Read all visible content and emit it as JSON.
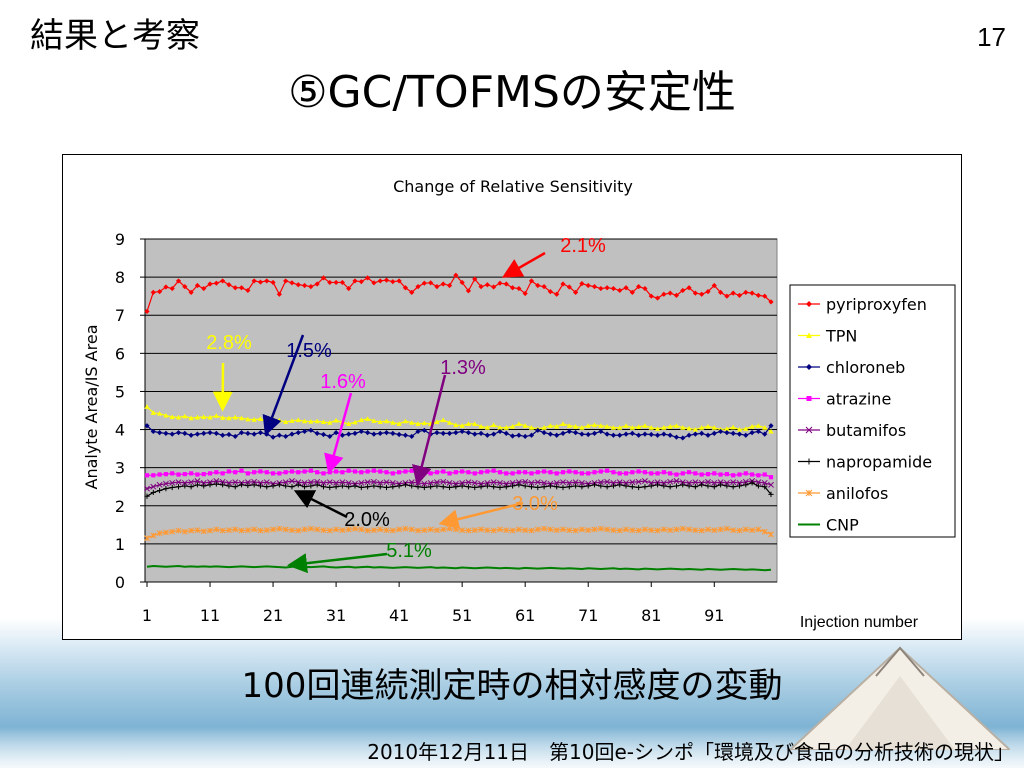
{
  "slide": {
    "section_title": "結果と考察",
    "page_number": "17",
    "title": "⑤GC/TOFMSの安定性",
    "caption": "100回連続測定時の相対感度の変動",
    "footer": "2010年12月11日　第10回e-シンポ「環境及び食品の分析技術の現状」"
  },
  "chart_data": {
    "type": "line",
    "title": "Change of Relative Sensitivity",
    "xlabel": "Injection number",
    "ylabel": "Analyte Area/IS Area",
    "xlim": [
      1,
      100
    ],
    "ylim": [
      0,
      9
    ],
    "y_ticks": [
      "0",
      "1",
      "2",
      "3",
      "4",
      "5",
      "6",
      "7",
      "8",
      "9"
    ],
    "x_ticks": [
      {
        "label": "1",
        "x": 1
      },
      {
        "label": "11",
        "x": 11
      },
      {
        "label": "21",
        "x": 21
      },
      {
        "label": "31",
        "x": 31
      },
      {
        "label": "41",
        "x": 41
      },
      {
        "label": "51",
        "x": 51
      },
      {
        "label": "61",
        "x": 61
      },
      {
        "label": "71",
        "x": 71
      },
      {
        "label": "81",
        "x": 81
      },
      {
        "label": "91",
        "x": 91
      }
    ],
    "plot_background": "#c0c0c0",
    "grid": true,
    "legend_position": "right",
    "series": [
      {
        "name": "pyriproxyfen",
        "color": "#ff0000",
        "marker": "diamond",
        "values": [
          7.1,
          7.6,
          7.62,
          7.74,
          7.7,
          7.9,
          7.75,
          7.6,
          7.78,
          7.7,
          7.82,
          7.84,
          7.9,
          7.8,
          7.72,
          7.72,
          7.65,
          7.9,
          7.87,
          7.9,
          7.86,
          7.55,
          7.9,
          7.85,
          7.8,
          7.78,
          7.75,
          7.82,
          7.98,
          7.86,
          7.86,
          7.86,
          7.7,
          7.9,
          7.88,
          7.98,
          7.85,
          7.9,
          7.92,
          7.88,
          7.9,
          7.72,
          7.6,
          7.75,
          7.84,
          7.85,
          7.75,
          7.82,
          7.78,
          8.05,
          7.86,
          7.64,
          7.95,
          7.75,
          7.8,
          7.74,
          7.84,
          7.82,
          7.72,
          7.7,
          7.57,
          7.9,
          7.78,
          7.75,
          7.62,
          7.55,
          7.82,
          7.74,
          7.6,
          7.83,
          7.78,
          7.75,
          7.7,
          7.72,
          7.7,
          7.65,
          7.72,
          7.6,
          7.75,
          7.7,
          7.5,
          7.45,
          7.55,
          7.58,
          7.52,
          7.65,
          7.72,
          7.58,
          7.55,
          7.62,
          7.78,
          7.6,
          7.5,
          7.58,
          7.52,
          7.6,
          7.58,
          7.52,
          7.5,
          7.35
        ]
      },
      {
        "name": "TPN",
        "color": "#ffff00",
        "marker": "triangle",
        "values": [
          4.6,
          4.44,
          4.42,
          4.37,
          4.33,
          4.32,
          4.35,
          4.3,
          4.32,
          4.33,
          4.32,
          4.36,
          4.31,
          4.3,
          4.32,
          4.3,
          4.27,
          4.26,
          4.28,
          4.22,
          4.28,
          4.24,
          4.2,
          4.23,
          4.25,
          4.22,
          4.21,
          4.22,
          4.2,
          4.18,
          4.24,
          4.19,
          4.15,
          4.19,
          4.25,
          4.28,
          4.23,
          4.2,
          4.22,
          4.18,
          4.15,
          4.22,
          4.18,
          4.15,
          4.17,
          4.15,
          4.2,
          4.25,
          4.18,
          4.12,
          4.1,
          4.15,
          4.15,
          4.08,
          4.05,
          4.12,
          4.05,
          4.05,
          4.08,
          4.15,
          4.1,
          4.05,
          4.02,
          4.05,
          4.1,
          4.08,
          4.15,
          4.1,
          4.08,
          4.05,
          4.1,
          4.12,
          4.1,
          4.08,
          4.05,
          4.05,
          4.1,
          4.05,
          4.07,
          4.1,
          4.05,
          4.02,
          4.05,
          4.08,
          4.1,
          4.05,
          4.03,
          4.0,
          4.05,
          4.08,
          4.05,
          4.0,
          4.02,
          4.06,
          4.0,
          4.02,
          4.08,
          4.1,
          4.05,
          3.95
        ]
      },
      {
        "name": "chloroneb",
        "color": "#000080",
        "marker": "diamond",
        "values": [
          4.1,
          3.95,
          3.92,
          3.9,
          3.88,
          3.92,
          3.9,
          3.85,
          3.88,
          3.9,
          3.92,
          3.9,
          3.85,
          3.87,
          3.82,
          3.92,
          3.9,
          3.88,
          3.92,
          3.88,
          3.8,
          3.85,
          3.82,
          3.88,
          3.92,
          3.95,
          3.98,
          3.9,
          3.87,
          3.82,
          3.92,
          3.85,
          3.88,
          3.9,
          3.95,
          3.92,
          3.88,
          3.9,
          3.92,
          3.9,
          3.87,
          3.85,
          3.82,
          3.95,
          3.98,
          3.88,
          3.92,
          3.9,
          3.9,
          3.92,
          3.95,
          3.92,
          3.88,
          3.9,
          3.85,
          3.88,
          3.95,
          3.9,
          3.83,
          3.85,
          3.82,
          3.85,
          3.98,
          3.92,
          3.88,
          3.85,
          3.9,
          3.95,
          3.92,
          3.88,
          3.87,
          3.9,
          3.95,
          3.88,
          3.85,
          3.85,
          3.88,
          3.9,
          3.85,
          3.88,
          3.87,
          3.85,
          3.88,
          3.85,
          3.8,
          3.78,
          3.85,
          3.88,
          3.9,
          3.85,
          3.9,
          3.95,
          3.92,
          3.9,
          3.88,
          3.85,
          3.92,
          3.95,
          3.88,
          4.1
        ]
      },
      {
        "name": "atrazine",
        "color": "#ff00ff",
        "marker": "square",
        "values": [
          2.8,
          2.8,
          2.82,
          2.83,
          2.85,
          2.82,
          2.83,
          2.85,
          2.82,
          2.83,
          2.85,
          2.88,
          2.85,
          2.9,
          2.88,
          2.92,
          2.85,
          2.88,
          2.9,
          2.88,
          2.85,
          2.85,
          2.88,
          2.9,
          2.88,
          2.9,
          2.92,
          2.88,
          2.85,
          2.88,
          2.9,
          2.88,
          2.92,
          2.9,
          2.88,
          2.9,
          2.92,
          2.9,
          2.88,
          2.85,
          2.88,
          2.9,
          2.92,
          2.88,
          2.85,
          2.85,
          2.88,
          2.9,
          2.85,
          2.88,
          2.9,
          2.88,
          2.85,
          2.88,
          2.9,
          2.92,
          2.88,
          2.85,
          2.85,
          2.88,
          2.88,
          2.85,
          2.88,
          2.9,
          2.88,
          2.85,
          2.88,
          2.9,
          2.88,
          2.85,
          2.85,
          2.88,
          2.9,
          2.92,
          2.88,
          2.85,
          2.85,
          2.88,
          2.9,
          2.88,
          2.85,
          2.85,
          2.88,
          2.85,
          2.82,
          2.85,
          2.88,
          2.85,
          2.82,
          2.83,
          2.85,
          2.82,
          2.83,
          2.8,
          2.82,
          2.85,
          2.82,
          2.8,
          2.82,
          2.75
        ]
      },
      {
        "name": "butamifos",
        "color": "#800080",
        "marker": "x",
        "values": [
          2.45,
          2.5,
          2.55,
          2.58,
          2.6,
          2.62,
          2.6,
          2.62,
          2.65,
          2.6,
          2.62,
          2.65,
          2.63,
          2.6,
          2.62,
          2.6,
          2.62,
          2.63,
          2.6,
          2.62,
          2.58,
          2.6,
          2.62,
          2.65,
          2.62,
          2.6,
          2.62,
          2.63,
          2.6,
          2.62,
          2.6,
          2.62,
          2.6,
          2.58,
          2.6,
          2.62,
          2.63,
          2.6,
          2.62,
          2.6,
          2.58,
          2.6,
          2.62,
          2.6,
          2.58,
          2.6,
          2.62,
          2.63,
          2.6,
          2.58,
          2.6,
          2.62,
          2.6,
          2.58,
          2.6,
          2.62,
          2.6,
          2.58,
          2.6,
          2.62,
          2.63,
          2.6,
          2.62,
          2.6,
          2.58,
          2.6,
          2.62,
          2.6,
          2.62,
          2.6,
          2.58,
          2.6,
          2.62,
          2.63,
          2.6,
          2.62,
          2.6,
          2.62,
          2.63,
          2.65,
          2.6,
          2.62,
          2.6,
          2.63,
          2.65,
          2.62,
          2.6,
          2.62,
          2.6,
          2.63,
          2.6,
          2.62,
          2.6,
          2.62,
          2.6,
          2.63,
          2.65,
          2.62,
          2.6,
          2.55
        ]
      },
      {
        "name": "napropamide",
        "color": "#000000",
        "marker": "plus",
        "values": [
          2.25,
          2.35,
          2.4,
          2.45,
          2.48,
          2.5,
          2.52,
          2.5,
          2.55,
          2.52,
          2.55,
          2.57,
          2.55,
          2.52,
          2.5,
          2.55,
          2.53,
          2.55,
          2.52,
          2.5,
          2.52,
          2.55,
          2.52,
          2.5,
          2.55,
          2.5,
          2.52,
          2.55,
          2.5,
          2.48,
          2.5,
          2.52,
          2.5,
          2.52,
          2.48,
          2.5,
          2.52,
          2.5,
          2.48,
          2.5,
          2.52,
          2.55,
          2.52,
          2.5,
          2.48,
          2.5,
          2.52,
          2.5,
          2.48,
          2.5,
          2.52,
          2.5,
          2.48,
          2.5,
          2.52,
          2.5,
          2.48,
          2.5,
          2.52,
          2.55,
          2.52,
          2.5,
          2.48,
          2.5,
          2.52,
          2.5,
          2.48,
          2.5,
          2.52,
          2.5,
          2.52,
          2.55,
          2.52,
          2.5,
          2.52,
          2.55,
          2.52,
          2.5,
          2.48,
          2.5,
          2.52,
          2.55,
          2.52,
          2.5,
          2.52,
          2.55,
          2.52,
          2.5,
          2.55,
          2.52,
          2.5,
          2.55,
          2.52,
          2.5,
          2.52,
          2.55,
          2.6,
          2.52,
          2.5,
          2.3
        ]
      },
      {
        "name": "anilofos",
        "color": "#ff9933",
        "marker": "star",
        "values": [
          1.15,
          1.22,
          1.28,
          1.3,
          1.32,
          1.35,
          1.32,
          1.35,
          1.36,
          1.33,
          1.35,
          1.38,
          1.35,
          1.36,
          1.38,
          1.35,
          1.36,
          1.38,
          1.35,
          1.36,
          1.38,
          1.4,
          1.38,
          1.36,
          1.35,
          1.38,
          1.4,
          1.38,
          1.36,
          1.35,
          1.38,
          1.36,
          1.38,
          1.4,
          1.38,
          1.35,
          1.36,
          1.38,
          1.36,
          1.35,
          1.38,
          1.4,
          1.38,
          1.35,
          1.36,
          1.38,
          1.36,
          1.38,
          1.4,
          1.38,
          1.36,
          1.35,
          1.36,
          1.38,
          1.36,
          1.35,
          1.38,
          1.36,
          1.35,
          1.38,
          1.36,
          1.35,
          1.38,
          1.4,
          1.38,
          1.36,
          1.38,
          1.36,
          1.35,
          1.38,
          1.36,
          1.38,
          1.4,
          1.38,
          1.36,
          1.35,
          1.38,
          1.36,
          1.35,
          1.38,
          1.36,
          1.35,
          1.38,
          1.36,
          1.38,
          1.4,
          1.38,
          1.36,
          1.35,
          1.38,
          1.36,
          1.38,
          1.4,
          1.36,
          1.35,
          1.38,
          1.36,
          1.38,
          1.32,
          1.25
        ]
      },
      {
        "name": "CNP",
        "color": "#008000",
        "marker": "dash",
        "values": [
          0.4,
          0.42,
          0.41,
          0.4,
          0.41,
          0.42,
          0.4,
          0.41,
          0.4,
          0.41,
          0.4,
          0.41,
          0.4,
          0.39,
          0.4,
          0.41,
          0.4,
          0.39,
          0.4,
          0.41,
          0.4,
          0.39,
          0.38,
          0.4,
          0.41,
          0.4,
          0.39,
          0.4,
          0.41,
          0.39,
          0.38,
          0.39,
          0.4,
          0.38,
          0.39,
          0.4,
          0.38,
          0.39,
          0.38,
          0.37,
          0.38,
          0.39,
          0.38,
          0.37,
          0.38,
          0.39,
          0.37,
          0.38,
          0.37,
          0.36,
          0.38,
          0.37,
          0.36,
          0.37,
          0.38,
          0.37,
          0.36,
          0.37,
          0.36,
          0.35,
          0.37,
          0.36,
          0.35,
          0.36,
          0.37,
          0.36,
          0.35,
          0.36,
          0.35,
          0.34,
          0.36,
          0.35,
          0.34,
          0.35,
          0.36,
          0.34,
          0.35,
          0.34,
          0.33,
          0.35,
          0.34,
          0.33,
          0.34,
          0.35,
          0.34,
          0.33,
          0.34,
          0.33,
          0.32,
          0.34,
          0.33,
          0.32,
          0.33,
          0.34,
          0.33,
          0.32,
          0.33,
          0.32,
          0.31,
          0.32
        ]
      }
    ],
    "annotations": [
      {
        "text": "2.1%",
        "color": "#ff0000",
        "arrow_to": [
          58,
          8.05
        ]
      },
      {
        "text": "2.8%",
        "color": "#ffff00",
        "arrow_to": [
          13,
          4.6
        ]
      },
      {
        "text": "1.5%",
        "color": "#000080",
        "arrow_to": [
          20,
          3.95
        ]
      },
      {
        "text": "1.6%",
        "color": "#ff00ff",
        "arrow_to": [
          30,
          2.95
        ]
      },
      {
        "text": "1.3%",
        "color": "#800080",
        "arrow_to": [
          44,
          2.65
        ]
      },
      {
        "text": "2.0%",
        "color": "#000000",
        "arrow_to": [
          25,
          2.35
        ]
      },
      {
        "text": "3.0%",
        "color": "#ff9933",
        "arrow_to": [
          48,
          1.55
        ]
      },
      {
        "text": "5.1%",
        "color": "#008000",
        "arrow_to": [
          24,
          0.45
        ]
      }
    ]
  }
}
